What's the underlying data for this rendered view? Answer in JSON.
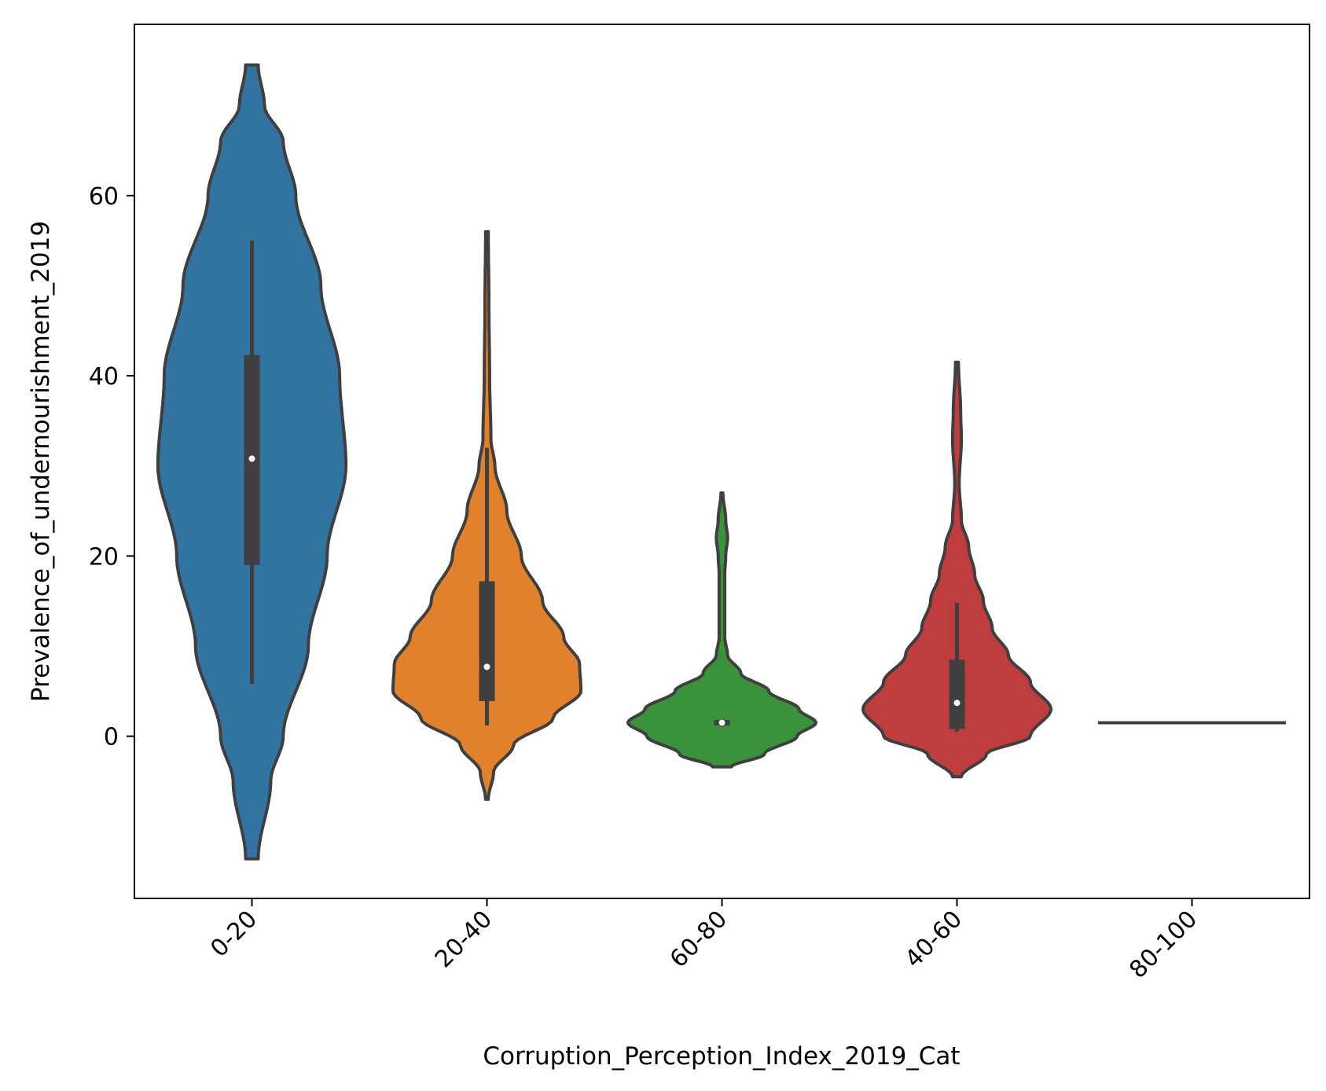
{
  "chart_data": {
    "type": "violin",
    "title": "",
    "xlabel": "Corruption_Perception_Index_2019_Cat",
    "ylabel": "Prevalence_of_undernourishment_2019",
    "ylim": [
      -18,
      79
    ],
    "yticks": [
      0,
      20,
      40,
      60
    ],
    "categories": [
      "0-20",
      "20-40",
      "60-80",
      "40-60",
      "80-100"
    ],
    "colors": [
      "#3274a1",
      "#e1812c",
      "#3a923a",
      "#c03d3e",
      "#9372b2"
    ],
    "grid": false,
    "legend": "none",
    "violins": [
      {
        "category": "0-20",
        "color": "#3274a1",
        "range": [
          -13.6,
          74.5
        ],
        "quartiles": [
          19.0,
          30.8,
          42.3
        ],
        "whiskers": [
          5.8,
          55.0
        ],
        "density": [
          [
            -13.6,
            0.01
          ],
          [
            -5,
            0.03
          ],
          [
            0,
            0.05
          ],
          [
            10,
            0.09
          ],
          [
            20,
            0.12
          ],
          [
            30,
            0.15
          ],
          [
            40,
            0.14
          ],
          [
            50,
            0.11
          ],
          [
            60,
            0.07
          ],
          [
            66,
            0.05
          ],
          [
            70,
            0.02
          ],
          [
            74.5,
            0.01
          ]
        ]
      },
      {
        "category": "20-40",
        "color": "#e1812c",
        "range": [
          -7.0,
          56.0
        ],
        "quartiles": [
          3.9,
          7.7,
          17.2
        ],
        "whiskers": [
          1.2,
          32.0
        ],
        "density": [
          [
            -7.0,
            0.01
          ],
          [
            -4,
            0.05
          ],
          [
            -1,
            0.2
          ],
          [
            2,
            0.5
          ],
          [
            5,
            0.71
          ],
          [
            8,
            0.7
          ],
          [
            11,
            0.58
          ],
          [
            15,
            0.42
          ],
          [
            20,
            0.26
          ],
          [
            25,
            0.15
          ],
          [
            30,
            0.06
          ],
          [
            33,
            0.03
          ],
          [
            40,
            0.02
          ],
          [
            48,
            0.015
          ],
          [
            56,
            0.01
          ]
        ]
      },
      {
        "category": "60-80",
        "color": "#3a923a",
        "range": [
          -3.4,
          27.0
        ],
        "quartiles": [
          1.2,
          1.5,
          1.8
        ],
        "whiskers": [
          1.5,
          1.5
        ],
        "density": [
          [
            -3.4,
            0.1
          ],
          [
            -2,
            0.45
          ],
          [
            0,
            0.8
          ],
          [
            1.5,
            1.0
          ],
          [
            3,
            0.82
          ],
          [
            5,
            0.5
          ],
          [
            7,
            0.2
          ],
          [
            9,
            0.06
          ],
          [
            11,
            0.03
          ],
          [
            14,
            0.03
          ],
          [
            18,
            0.03
          ],
          [
            20,
            0.04
          ],
          [
            22,
            0.06
          ],
          [
            24,
            0.04
          ],
          [
            27,
            0.01
          ]
        ]
      },
      {
        "category": "40-60",
        "color": "#c03d3e",
        "range": [
          -4.5,
          41.5
        ],
        "quartiles": [
          0.8,
          3.7,
          8.5
        ],
        "whiskers": [
          0.5,
          14.8
        ],
        "density": [
          [
            -4.5,
            0.03
          ],
          [
            -2,
            0.2
          ],
          [
            0,
            0.5
          ],
          [
            3,
            0.64
          ],
          [
            6,
            0.5
          ],
          [
            9,
            0.35
          ],
          [
            12,
            0.24
          ],
          [
            15,
            0.18
          ],
          [
            18,
            0.12
          ],
          [
            21,
            0.08
          ],
          [
            24,
            0.03
          ],
          [
            28,
            0.015
          ],
          [
            33,
            0.03
          ],
          [
            36,
            0.025
          ],
          [
            41.5,
            0.01
          ]
        ]
      },
      {
        "category": "80-100",
        "color": "#9372b2",
        "range": [
          1.5,
          1.5
        ],
        "single_value": 1.5
      }
    ]
  }
}
